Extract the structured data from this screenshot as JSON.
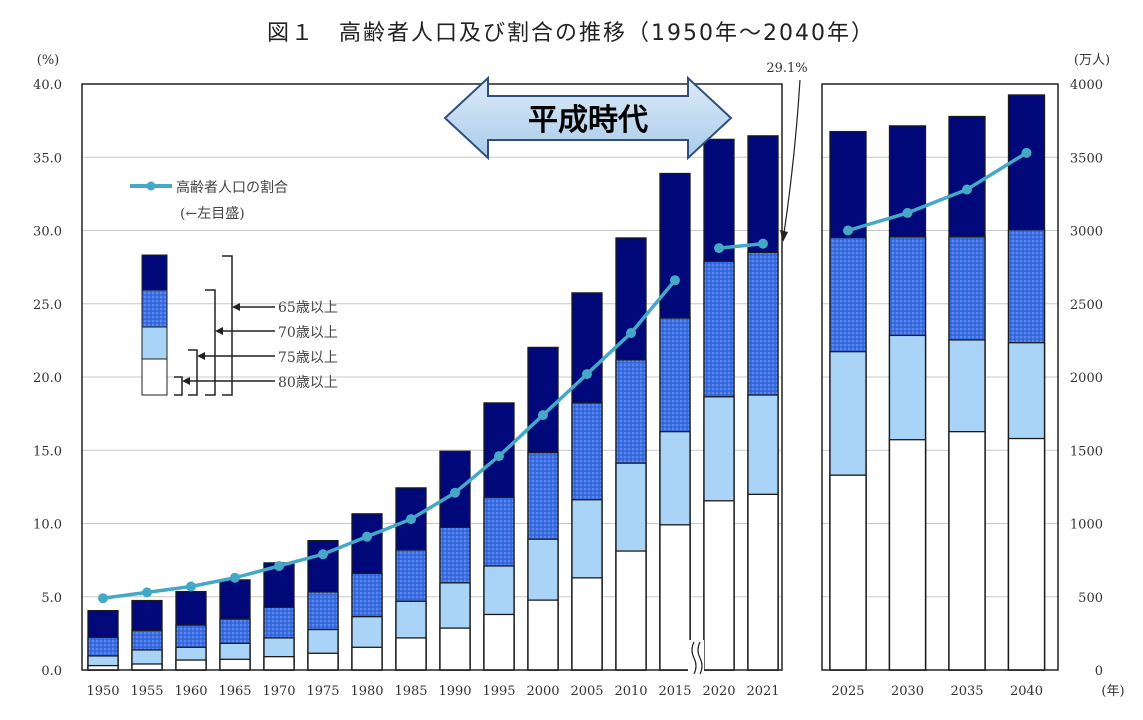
{
  "chart_data": {
    "type": "bar",
    "title": "図１　高齢者人口及び割合の推移（1950年～2040年）",
    "left_axis": {
      "unit": "(%)",
      "ylim": [
        0,
        40
      ],
      "ticks": [
        "0.0",
        "5.0",
        "10.0",
        "15.0",
        "20.0",
        "25.0",
        "30.0",
        "35.0",
        "40.0"
      ]
    },
    "right_axis": {
      "unit": "(万人)",
      "ylim": [
        0,
        4000
      ],
      "ticks": [
        "0",
        "500",
        "1000",
        "1500",
        "2000",
        "2500",
        "3000",
        "3500",
        "4000"
      ]
    },
    "x_unit": "(年)",
    "grid": true,
    "stacked": true,
    "panels": [
      {
        "categories": [
          "1950",
          "1955",
          "1960",
          "1965",
          "1970",
          "1975",
          "1980",
          "1985",
          "1990",
          "1995",
          "2000",
          "2005",
          "2010",
          "2015",
          "2020",
          "2021"
        ],
        "axis_break_after": "2015"
      },
      {
        "categories": [
          "2025",
          "2030",
          "2035",
          "2040"
        ]
      }
    ],
    "series": [
      {
        "name": "65歳以上",
        "axis": "right",
        "color": "#00087a",
        "values": [
          405,
          474,
          535,
          615,
          731,
          883,
          1066,
          1243,
          1493,
          1823,
          2202,
          2574,
          2949,
          3389,
          3622,
          3646,
          3675,
          3714,
          3778,
          3925
        ]
      },
      {
        "name": "70歳以上",
        "axis": "right",
        "color": "#3b6fe3",
        "pattern": "dotted",
        "values": [
          223,
          269,
          307,
          348,
          428,
          533,
          660,
          820,
          974,
          1179,
          1485,
          1823,
          2117,
          2403,
          2790,
          2851,
          2952,
          2957,
          2957,
          3005
        ]
      },
      {
        "name": "75歳以上",
        "axis": "right",
        "color": "#a9d3f7",
        "values": [
          96,
          137,
          155,
          182,
          219,
          276,
          364,
          469,
          595,
          710,
          893,
          1162,
          1412,
          1627,
          1865,
          1877,
          2173,
          2284,
          2253,
          2234
        ]
      },
      {
        "name": "80歳以上",
        "axis": "right",
        "color": "#ffffff",
        "values": [
          30,
          41,
          68,
          73,
          91,
          114,
          155,
          219,
          286,
          379,
          477,
          629,
          812,
          991,
          1155,
          1199,
          1330,
          1572,
          1627,
          1580
        ]
      },
      {
        "name": "高齢者人口の割合",
        "axis": "left",
        "type": "line",
        "color": "#45a8c6",
        "values": [
          4.9,
          5.3,
          5.7,
          6.3,
          7.1,
          7.9,
          9.1,
          10.3,
          12.1,
          14.6,
          17.4,
          20.2,
          23.0,
          26.6,
          28.8,
          29.1,
          30.0,
          31.2,
          32.8,
          35.3
        ]
      }
    ],
    "legend": {
      "line_label": "高齢者人口の割合",
      "line_note": "(←左目盛)",
      "placement": "top-left"
    },
    "annotations": {
      "callout": "29.1%",
      "era_arrow": "平成時代"
    }
  }
}
